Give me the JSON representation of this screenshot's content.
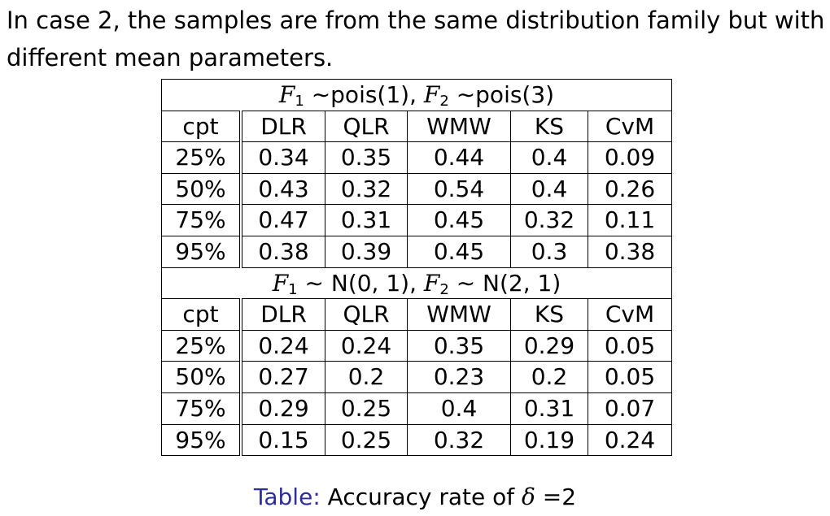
{
  "intro": {
    "line1": "In case 2, the samples are from the same distribution family but with",
    "line2": "different mean parameters."
  },
  "table": {
    "columns": [
      "cpt",
      "DLR",
      "QLR",
      "WMW",
      "KS",
      "CvM"
    ],
    "sections": [
      {
        "header": {
          "f1": "F",
          "f1_sub": "1",
          "f1_rel": " ∼pois(1), ",
          "f2": "F",
          "f2_sub": "2",
          "f2_rel": " ∼pois(3)"
        },
        "rows": [
          [
            "25%",
            "0.34",
            "0.35",
            "0.44",
            "0.4",
            "0.09"
          ],
          [
            "50%",
            "0.43",
            "0.32",
            "0.54",
            "0.4",
            "0.26"
          ],
          [
            "75%",
            "0.47",
            "0.31",
            "0.45",
            "0.32",
            "0.11"
          ],
          [
            "95%",
            "0.38",
            "0.39",
            "0.45",
            "0.3",
            "0.38"
          ]
        ]
      },
      {
        "header": {
          "f1": "F",
          "f1_sub": "1",
          "f1_rel": " ∼ N(0, 1), ",
          "f2": "F",
          "f2_sub": "2",
          "f2_rel": " ∼ N(2, 1)"
        },
        "rows": [
          [
            "25%",
            "0.24",
            "0.24",
            "0.35",
            "0.29",
            "0.05"
          ],
          [
            "50%",
            "0.27",
            "0.2",
            "0.23",
            "0.2",
            "0.05"
          ],
          [
            "75%",
            "0.29",
            "0.25",
            "0.4",
            "0.31",
            "0.07"
          ],
          [
            "95%",
            "0.15",
            "0.25",
            "0.32",
            "0.19",
            "0.24"
          ]
        ]
      }
    ]
  },
  "caption": {
    "label": "Table:",
    "text": " Accuracy rate of ",
    "symbol": "δ",
    "value": " =2"
  },
  "colors": {
    "caption_label": "#2e2e9a",
    "text": "#000000"
  }
}
